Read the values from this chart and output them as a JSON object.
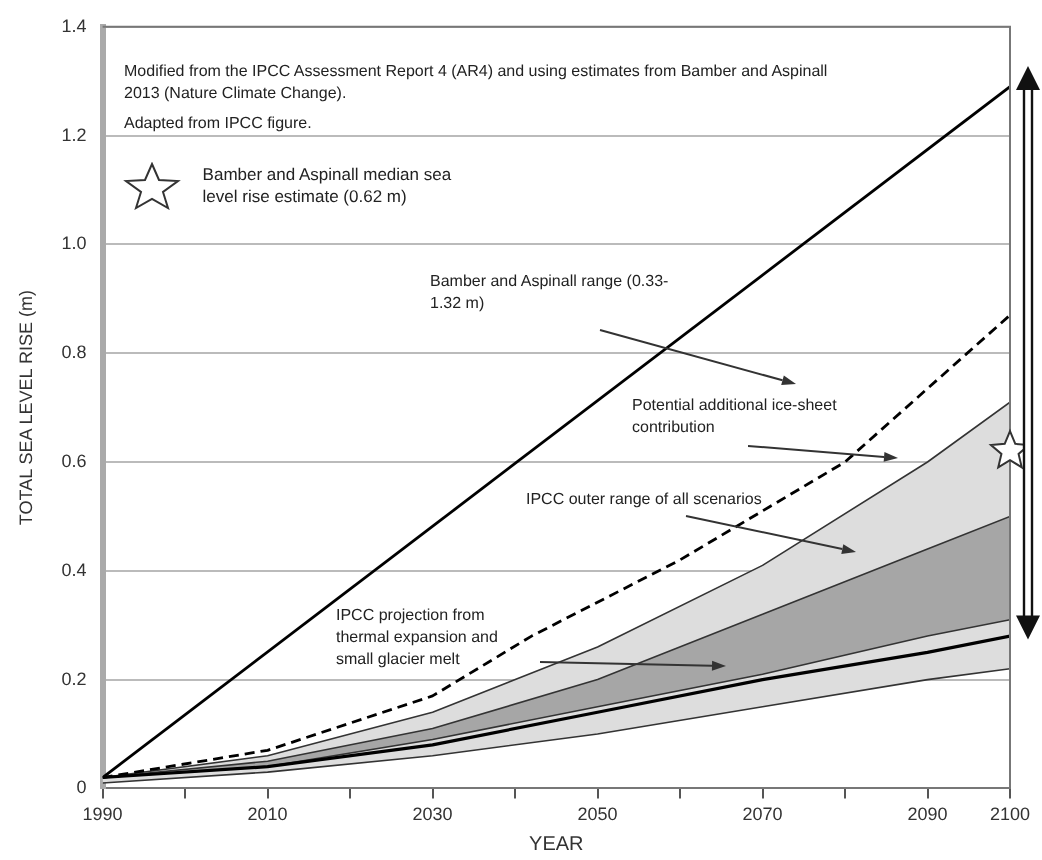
{
  "chart_data": {
    "type": "line",
    "xlabel": "YEAR",
    "ylabel": "TOTAL SEA LEVEL RISE (m)",
    "xlim": [
      1990,
      2100
    ],
    "xticks": [
      1990,
      {
        "value": 2000,
        "label": null
      },
      2010,
      {
        "value": 2020,
        "label": null
      },
      2030,
      {
        "value": 2040,
        "label": null
      },
      2050,
      {
        "value": 2060,
        "label": null
      },
      2070,
      {
        "value": 2080,
        "label": null
      },
      2090,
      2100
    ],
    "ylim": [
      0,
      1.4
    ],
    "yticks": [
      0,
      0.2,
      0.4,
      0.6,
      0.8,
      {
        "value": 1,
        "label": "1.0"
      },
      1.2,
      1.4
    ],
    "grid": "y",
    "legend": "top left",
    "annotations": [
      "Modified from the IPCC Assessment Report 4 (AR4) and using estimates from Bamber and Aspinall 2013 (Nature Climate Change).",
      "Adapted from IPCC figure.",
      "Bamber and Aspinall range (0.33-1.32 m)",
      "Potential additional ice-sheet contribution",
      "IPCC outer range of all scenarios",
      "IPCC projection from thermal expansion and small glacier melt"
    ],
    "series": [
      {
        "color": "#000000",
        "x": [
          1990,
          2100
        ],
        "values": [
          0.02,
          1.29
        ]
      },
      {
        "line_style": "dashed",
        "color": "#000000",
        "x": [
          1990,
          2010,
          2030,
          2042,
          2060,
          2080,
          2100
        ],
        "values": [
          0.02,
          0.07,
          0.17,
          0.28,
          0.42,
          0.6,
          0.87
        ]
      },
      {
        "color": "#000000",
        "x": [
          1990,
          2010,
          2030,
          2050,
          2070,
          2090,
          2100
        ],
        "values": [
          0.02,
          0.04,
          0.08,
          0.14,
          0.2,
          0.25,
          0.28
        ],
        "lower": [
          0.01,
          0.03,
          0.06,
          0.1,
          0.15,
          0.2,
          0.22
        ],
        "upper": [
          0.02,
          0.06,
          0.14,
          0.26,
          0.41,
          0.6,
          0.71
        ]
      },
      {
        "color": "#333333",
        "x": [
          1990,
          2010,
          2030,
          2050,
          2070,
          2090,
          2100
        ],
        "values": [
          0.02,
          0.05,
          0.11,
          0.2,
          0.32,
          0.44,
          0.5
        ],
        "lower": [
          0.02,
          0.04,
          0.09,
          0.15,
          0.21,
          0.28,
          0.31
        ],
        "upper": [
          0.02,
          0.05,
          0.11,
          0.2,
          0.32,
          0.44,
          0.5
        ]
      },
      {
        "color": "#333333",
        "x": [
          1990,
          2010,
          2030,
          2050,
          2070,
          2090,
          2100
        ],
        "values": [
          0.01,
          0.03,
          0.06,
          0.1,
          0.15,
          0.2,
          0.22
        ]
      },
      {
        "color": "#333333",
        "x": [
          1990,
          2010,
          2030,
          2050,
          2070,
          2090,
          2100
        ],
        "values": [
          0.02,
          0.06,
          0.14,
          0.26,
          0.41,
          0.6,
          0.71
        ]
      },
      {
        "color": "#333333",
        "x": [
          1990,
          2010,
          2030,
          2050,
          2070,
          2090,
          2100
        ],
        "values": [
          0.02,
          0.04,
          0.09,
          0.15,
          0.21,
          0.28,
          0.31
        ]
      },
      {
        "type": "scatter",
        "marker": "star",
        "color": "#ffffff",
        "name": "Bamber and Aspinall median sea level rise estimate (0.62 m)",
        "x": [
          2100
        ],
        "values": [
          0.62
        ]
      }
    ]
  }
}
